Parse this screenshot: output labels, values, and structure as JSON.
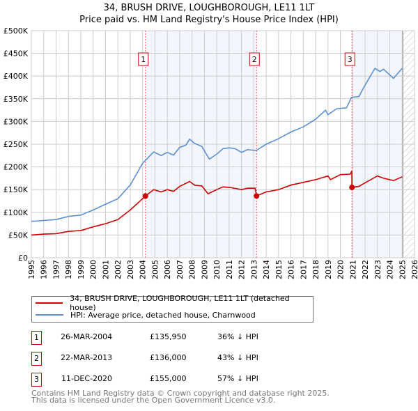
{
  "title": "34, BRUSH DRIVE, LOUGHBOROUGH, LE11 1LT",
  "subtitle": "Price paid vs. HM Land Registry's House Price Index (HPI)",
  "chart_data": {
    "type": "line",
    "title": "34, BRUSH DRIVE, LOUGHBOROUGH, LE11 1LT — Price paid vs. HM Land Registry's House Price Index (HPI)",
    "xlim": [
      1995,
      2026
    ],
    "ylim": [
      0,
      500000
    ],
    "grid": true,
    "xticks": [
      "1995",
      "1996",
      "1997",
      "1998",
      "1999",
      "2000",
      "2001",
      "2002",
      "2003",
      "2004",
      "2005",
      "2006",
      "2007",
      "2008",
      "2009",
      "2010",
      "2011",
      "2012",
      "2013",
      "2014",
      "2015",
      "2016",
      "2017",
      "2018",
      "2019",
      "2020",
      "2021",
      "2022",
      "2023",
      "2024",
      "2025",
      "2026"
    ],
    "yticks": [
      {
        "v": 0,
        "l": "£0"
      },
      {
        "v": 50000,
        "l": "£50K"
      },
      {
        "v": 100000,
        "l": "£100K"
      },
      {
        "v": 150000,
        "l": "£150K"
      },
      {
        "v": 200000,
        "l": "£200K"
      },
      {
        "v": 250000,
        "l": "£250K"
      },
      {
        "v": 300000,
        "l": "£300K"
      },
      {
        "v": 350000,
        "l": "£350K"
      },
      {
        "v": 400000,
        "l": "£400K"
      },
      {
        "v": 450000,
        "l": "£450K"
      },
      {
        "v": 500000,
        "l": "£500K"
      }
    ],
    "shaded_ranges": [
      [
        2004.23,
        2013.22
      ],
      [
        2020.94,
        2025.05
      ]
    ],
    "data_end": 2025.05,
    "series": [
      {
        "name": "34, BRUSH DRIVE, LOUGHBOROUGH, LE11 1LT (detached house)",
        "color": "#cc0000",
        "x": [
          1995,
          1996,
          1997,
          1998,
          1999,
          2000,
          2001,
          2002,
          2003,
          2004.23,
          2004.9,
          2005.5,
          2006,
          2006.5,
          2007,
          2007.8,
          2008.2,
          2008.8,
          2009.3,
          2010,
          2010.5,
          2011,
          2012,
          2012.5,
          2013.1,
          2013.22,
          2014,
          2015,
          2016,
          2017,
          2018,
          2019,
          2019.2,
          2020,
          2020.8,
          2020.93,
          2020.94,
          2021.5,
          2022,
          2023,
          2023.5,
          2024.3,
          2025
        ],
        "y": [
          50000,
          52000,
          53000,
          58000,
          60000,
          68000,
          75000,
          84000,
          105000,
          135950,
          150000,
          145000,
          150000,
          146000,
          157000,
          168000,
          160000,
          158000,
          141000,
          150000,
          156000,
          155000,
          150000,
          153000,
          153000,
          136000,
          145000,
          150000,
          160000,
          166000,
          172000,
          180000,
          172000,
          183000,
          184000,
          191000,
          155000,
          157000,
          165000,
          180000,
          175000,
          170000,
          178000
        ]
      },
      {
        "name": "HPI: Average price, detached house, Charnwood",
        "color": "#5b8fd4",
        "x": [
          1995,
          1996,
          1997,
          1998,
          1999,
          2000,
          2001,
          2002,
          2003,
          2004,
          2004.9,
          2005.5,
          2006,
          2006.5,
          2007,
          2007.5,
          2007.8,
          2008.2,
          2008.8,
          2009.4,
          2010,
          2010.5,
          2011,
          2011.5,
          2012,
          2012.5,
          2013.2,
          2014,
          2015,
          2016,
          2017,
          2018,
          2018.8,
          2019,
          2019.7,
          2020.5,
          2020.9,
          2021.5,
          2022,
          2022.8,
          2023.2,
          2023.5,
          2024.3,
          2025
        ],
        "y": [
          80000,
          82000,
          84000,
          91000,
          94000,
          105000,
          118000,
          130000,
          160000,
          208000,
          233000,
          225000,
          232000,
          226000,
          243000,
          248000,
          261000,
          252000,
          245000,
          217000,
          228000,
          240000,
          242000,
          240000,
          232000,
          238000,
          236000,
          250000,
          262000,
          277000,
          288000,
          305000,
          325000,
          315000,
          328000,
          330000,
          353000,
          355000,
          380000,
          417000,
          410000,
          415000,
          395000,
          417000
        ]
      }
    ],
    "sales": [
      {
        "label": "1",
        "x": 2004.23,
        "y": 135950
      },
      {
        "label": "2",
        "x": 2013.22,
        "y": 136000
      },
      {
        "label": "3",
        "x": 2020.94,
        "y": 155000
      }
    ]
  },
  "legend": {
    "property": "34, BRUSH DRIVE, LOUGHBOROUGH, LE11 1LT (detached house)",
    "hpi": "HPI: Average price, detached house, Charnwood"
  },
  "transactions": [
    {
      "num": "1",
      "date": "26-MAR-2004",
      "price": "£135,950",
      "hpi": "36% ↓ HPI"
    },
    {
      "num": "2",
      "date": "22-MAR-2013",
      "price": "£136,000",
      "hpi": "43% ↓ HPI"
    },
    {
      "num": "3",
      "date": "11-DEC-2020",
      "price": "£155,000",
      "hpi": "57% ↓ HPI"
    }
  ],
  "footer": {
    "line1": "Contains HM Land Registry data © Crown copyright and database right 2025.",
    "line2": "This data is licensed under the Open Government Licence v3.0."
  }
}
